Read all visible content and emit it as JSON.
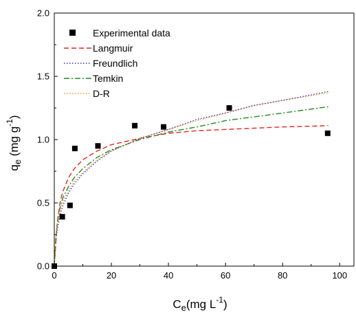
{
  "chart_data": {
    "type": "scatter",
    "xlabel": {
      "main": "C",
      "sub": "e",
      "rest": "(mg L",
      "sup": "-1",
      "end": ")"
    },
    "ylabel": {
      "main": "q",
      "sub": "e",
      "rest": " (mg g",
      "sup": "-1",
      "end": ")"
    },
    "xlim": [
      0,
      105
    ],
    "ylim": [
      0,
      2.0
    ],
    "xticks": [
      0,
      20,
      40,
      60,
      80,
      100
    ],
    "yticks": [
      0.0,
      0.5,
      1.0,
      1.5,
      2.0
    ],
    "xtick_labels": [
      "0",
      "20",
      "40",
      "60",
      "80",
      "100"
    ],
    "ytick_labels": [
      "0.0",
      "0.5",
      "1.0",
      "1.5",
      "2.0"
    ],
    "grid": false,
    "legend_position": "top-left",
    "experimental": {
      "name": "Experimental data",
      "color": "#000000",
      "marker": "square",
      "x": [
        0,
        2.8,
        5.5,
        7.2,
        15.3,
        28.2,
        38.3,
        61.3,
        95.8
      ],
      "y": [
        0.0,
        0.39,
        0.48,
        0.93,
        0.95,
        1.11,
        1.1,
        1.25,
        1.05
      ]
    },
    "series": [
      {
        "name": "Langmuir",
        "color": "#e8221d",
        "style": "dash",
        "x": [
          0,
          1,
          2,
          3,
          5,
          7,
          10,
          15,
          20,
          30,
          40,
          50,
          60,
          70,
          80,
          96
        ],
        "y": [
          0.0,
          0.34,
          0.5,
          0.59,
          0.7,
          0.77,
          0.84,
          0.91,
          0.96,
          1.01,
          1.05,
          1.07,
          1.08,
          1.09,
          1.1,
          1.11
        ]
      },
      {
        "name": "Freundlich",
        "color": "#2b2bd9",
        "style": "dot",
        "x": [
          0,
          0.5,
          1,
          2,
          3,
          5,
          7,
          10,
          15,
          20,
          30,
          40,
          50,
          60,
          70,
          80,
          96
        ],
        "y": [
          0.0,
          0.2,
          0.28,
          0.4,
          0.48,
          0.58,
          0.65,
          0.73,
          0.83,
          0.91,
          1.01,
          1.08,
          1.16,
          1.21,
          1.27,
          1.31,
          1.38
        ]
      },
      {
        "name": "Temkin",
        "color": "#1e8a1e",
        "style": "dash-dot",
        "x": [
          0,
          0.5,
          1,
          2,
          3,
          5,
          7,
          10,
          15,
          20,
          30,
          40,
          50,
          60,
          70,
          80,
          96
        ],
        "y": [
          0.0,
          0.22,
          0.33,
          0.46,
          0.54,
          0.63,
          0.7,
          0.77,
          0.86,
          0.92,
          1.0,
          1.06,
          1.1,
          1.15,
          1.18,
          1.21,
          1.26
        ]
      },
      {
        "name": "D-R",
        "color": "#f39c1a",
        "style": "dot",
        "x": [
          0,
          0.5,
          1,
          2,
          3,
          5,
          7,
          10,
          15,
          20,
          30,
          40,
          50,
          60,
          70,
          80,
          96
        ],
        "y": [
          0.0,
          0.23,
          0.32,
          0.44,
          0.51,
          0.6,
          0.67,
          0.74,
          0.84,
          0.91,
          1.01,
          1.08,
          1.15,
          1.21,
          1.27,
          1.31,
          1.37
        ]
      }
    ]
  }
}
